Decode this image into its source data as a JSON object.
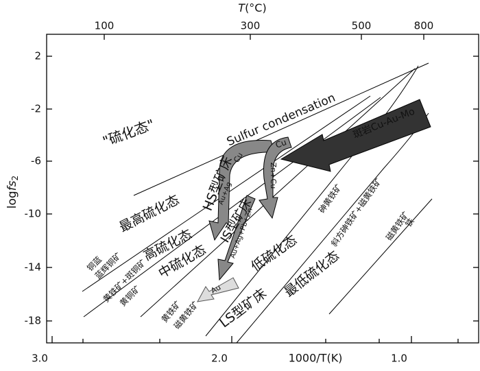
{
  "top_axis": {
    "label": "T",
    "unit": "(°C)",
    "ticks": [
      "100",
      "300",
      "500",
      "800"
    ]
  },
  "y_axis": {
    "label": "log",
    "label_italic": "fs",
    "label_sub": "2",
    "ticks": [
      "2",
      "-2",
      "-6",
      "-10",
      "-14",
      "-18"
    ]
  },
  "x_axis": {
    "label": "1000/T(K)",
    "ticks": [
      "3.0",
      "2.0",
      "1.0"
    ]
  },
  "labels": [
    "\"硫化态\"",
    "Sulfur condensation",
    "最高硫化态",
    "高硫化态",
    "中硫化态",
    "低硫化态",
    "最低硫化态",
    "HS型矿床",
    "IS型矿床",
    "LS型矿床",
    "斑岩Cu-Au-Mo",
    "Cu",
    "Cu",
    "Au+Ag",
    "Zn+Cu",
    "Au+Ag+Pb+Zn",
    "Au",
    "铜蓝",
    "蓝辉铜矿",
    "黄铁矿+斑铜矿",
    "黄铜矿",
    "黄铁矿",
    "磁黄铁矿",
    "砷黄铁矿",
    "斜方砷铁矿+磁黄铁矿",
    "磁黄铁矿",
    "铁"
  ]
}
